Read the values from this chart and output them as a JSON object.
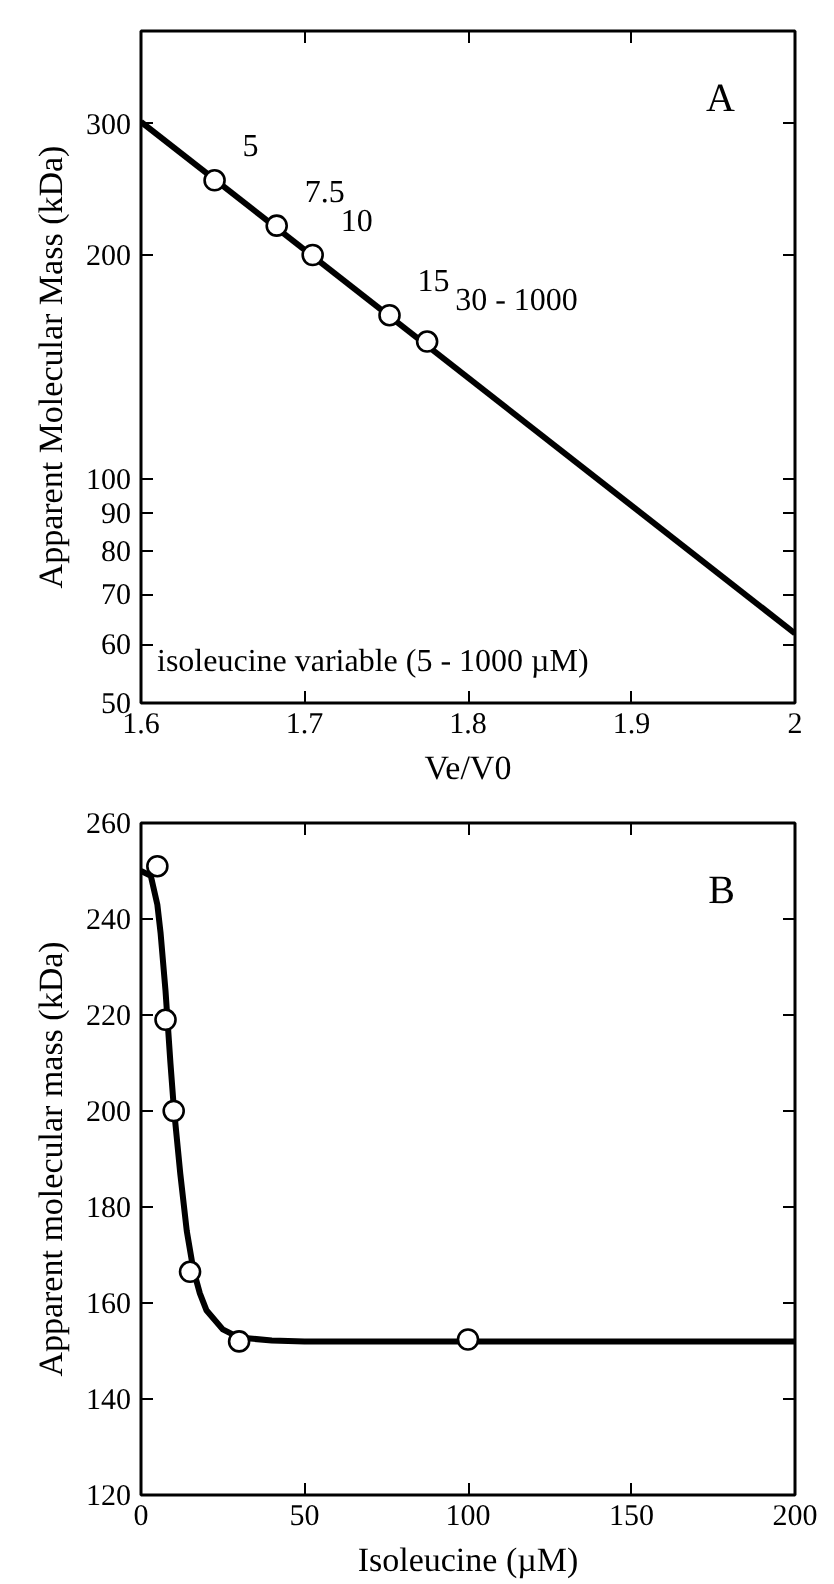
{
  "chart_data": [
    {
      "type": "scatter",
      "xlabel": "Ve/V0",
      "ylabel": "Apparent Molecular Mass (kDa)",
      "log": "y",
      "grid": false,
      "xlim": [
        1.6,
        2.0
      ],
      "ylim": [
        50,
        400
      ],
      "xticks": [
        1.6,
        1.7,
        1.8,
        1.9,
        2
      ],
      "yticks": [
        50,
        60,
        70,
        80,
        90,
        100,
        200,
        300
      ],
      "series": [
        {
          "type": "line",
          "color": "#000000",
          "x": [
            1.6,
            2.0
          ],
          "values": [
            302,
            62
          ]
        },
        {
          "marker": "circle",
          "color": "#000000",
          "x": [
            1.645,
            1.683,
            1.705,
            1.752,
            1.775
          ],
          "values": [
            252,
            219,
            200,
            166,
            153
          ]
        }
      ],
      "annotations": [
        "A",
        "isoleucine variable (5 - 1000 µM)",
        {
          "text": "5",
          "x": 1.645,
          "y": 252
        },
        {
          "text": "7.5",
          "x": 1.683,
          "y": 219
        },
        {
          "text": "10",
          "x": 1.705,
          "y": 200
        },
        {
          "text": "15",
          "x": 1.752,
          "y": 166
        },
        {
          "text": "30 - 1000",
          "x": 1.775,
          "y": 153
        }
      ]
    },
    {
      "type": "scatter",
      "xlabel": "Isoleucine (µM)",
      "ylabel": "Apparent molecular mass (kDa)",
      "grid": false,
      "xlim": [
        0,
        200
      ],
      "ylim": [
        120,
        260
      ],
      "xticks": [
        0,
        50,
        100,
        150,
        200
      ],
      "yticks": [
        120,
        140,
        160,
        180,
        200,
        220,
        240,
        260
      ],
      "series": [
        {
          "type": "line",
          "color": "#000000",
          "x": [
            0,
            3,
            5,
            6,
            7.5,
            9,
            10,
            12,
            14,
            16,
            18,
            20,
            25,
            30,
            40,
            50,
            100,
            200
          ],
          "values": [
            250,
            249,
            243,
            237,
            225,
            210,
            201,
            187,
            175,
            167,
            162,
            158.5,
            154.5,
            152.8,
            152.2,
            152,
            152,
            152
          ]
        },
        {
          "marker": "circle",
          "color": "#000000",
          "x": [
            5,
            7.5,
            10,
            15,
            30,
            100
          ],
          "values": [
            251,
            219,
            200,
            166.5,
            152,
            152.4
          ]
        }
      ],
      "annotations": [
        "B"
      ]
    }
  ]
}
